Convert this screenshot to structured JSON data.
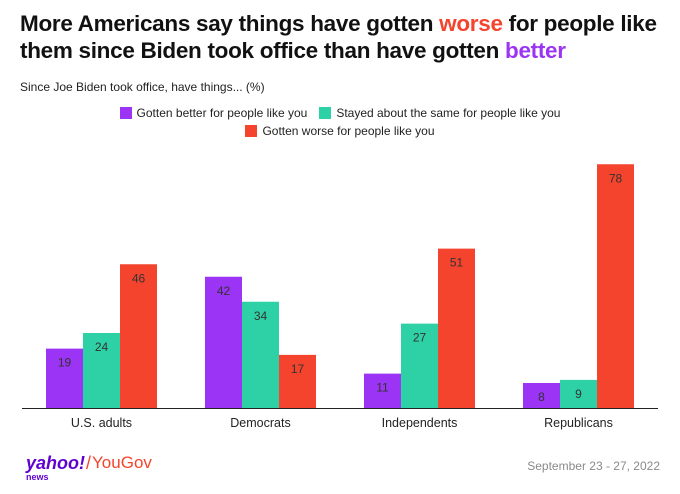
{
  "title": {
    "part1": "More Americans say things have gotten ",
    "highlight1": "worse",
    "part2": " for people like them since Biden took office than have gotten ",
    "highlight2": "better"
  },
  "subtitle": "Since Joe Biden took office, have things... (%)",
  "colors": {
    "better": "#9b34f5",
    "same": "#2ed0a6",
    "worse": "#f4442e",
    "axis": "#222222"
  },
  "chart_data": {
    "type": "bar",
    "title": "More Americans say things have gotten worse for people like them since Biden took office than have gotten better",
    "subtitle": "Since Joe Biden took office, have things... (%)",
    "categories": [
      "U.S. adults",
      "Democrats",
      "Independents",
      "Republicans"
    ],
    "series": [
      {
        "name": "Gotten better for people like you",
        "key": "better",
        "values": [
          19,
          42,
          11,
          8
        ]
      },
      {
        "name": "Stayed about the same for people like you",
        "key": "same",
        "values": [
          24,
          34,
          27,
          9
        ]
      },
      {
        "name": "Gotten worse for people like you",
        "key": "worse",
        "values": [
          46,
          17,
          51,
          78
        ]
      }
    ],
    "ylim": [
      0,
      80
    ],
    "xlabel": "",
    "ylabel": "",
    "grid": false,
    "legend": "top-center"
  },
  "footer": {
    "logo_yahoo": "yahoo!",
    "logo_news": "news",
    "logo_separator": "/",
    "logo_yougov": "YouGov",
    "date": "September 23 - 27, 2022"
  }
}
